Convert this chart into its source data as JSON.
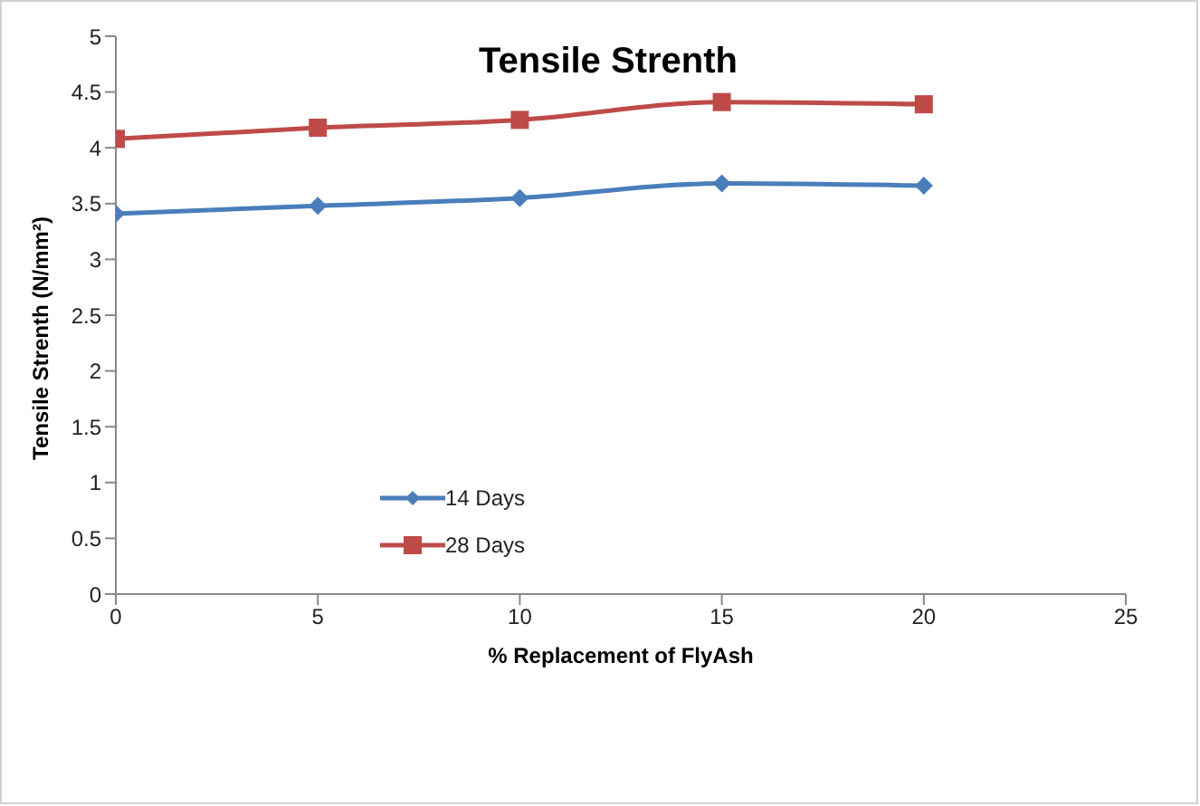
{
  "chart_data": {
    "type": "line",
    "title": "Tensile Strenth",
    "xlabel": "% Replacement of FlyAsh",
    "ylabel": "Tensile Strenth (N/mm²)",
    "x": [
      0,
      5,
      10,
      15,
      20
    ],
    "series": [
      {
        "name": "14 Days",
        "color": "#4a7ebb",
        "marker": "diamond",
        "values": [
          3.41,
          3.48,
          3.55,
          3.68,
          3.66
        ]
      },
      {
        "name": "28 Days",
        "color": "#be4b48",
        "marker": "square",
        "values": [
          4.08,
          4.18,
          4.25,
          4.41,
          4.39
        ]
      }
    ],
    "xlim": [
      0,
      25
    ],
    "xticks": [
      0,
      5,
      10,
      15,
      20,
      25
    ],
    "ylim": [
      0,
      5
    ],
    "yticks": [
      0,
      0.5,
      1,
      1.5,
      2,
      2.5,
      3,
      3.5,
      4,
      4.5,
      5
    ],
    "grid": false,
    "legend": "left",
    "line_style": "solid"
  }
}
